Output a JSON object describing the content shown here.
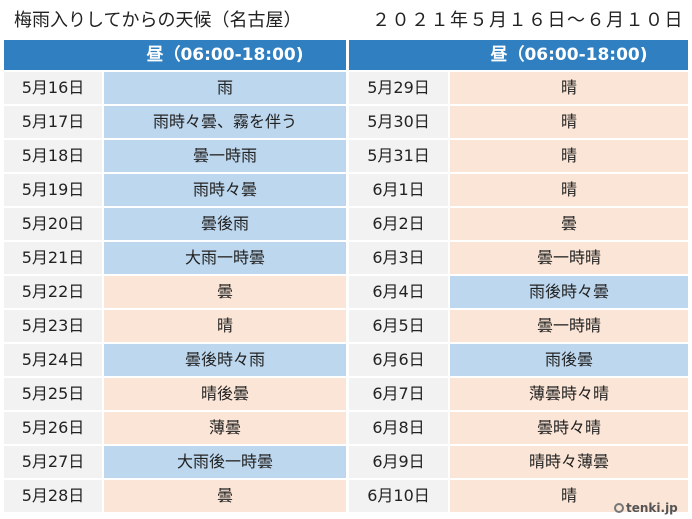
{
  "title": {
    "main": "梅雨入りしてからの天候（名古屋）",
    "range": "２０２１年５月１６日～６月１０日"
  },
  "header": {
    "left": "昼（06:00-18:00)",
    "right": "昼（06:00-18:00)"
  },
  "colors": {
    "rain": "#bdd7ee",
    "sun": "#fbe5d6",
    "header": "#2f7fc1"
  },
  "left_rows": [
    {
      "date": "5月16日",
      "weather": "雨",
      "type": "rain"
    },
    {
      "date": "5月17日",
      "weather": "雨時々曇、霧を伴う",
      "type": "rain"
    },
    {
      "date": "5月18日",
      "weather": "曇一時雨",
      "type": "rain"
    },
    {
      "date": "5月19日",
      "weather": "雨時々曇",
      "type": "rain"
    },
    {
      "date": "5月20日",
      "weather": "曇後雨",
      "type": "rain"
    },
    {
      "date": "5月21日",
      "weather": "大雨一時曇",
      "type": "rain"
    },
    {
      "date": "5月22日",
      "weather": "曇",
      "type": "sun"
    },
    {
      "date": "5月23日",
      "weather": "晴",
      "type": "sun"
    },
    {
      "date": "5月24日",
      "weather": "曇後時々雨",
      "type": "rain"
    },
    {
      "date": "5月25日",
      "weather": "晴後曇",
      "type": "sun"
    },
    {
      "date": "5月26日",
      "weather": "薄曇",
      "type": "sun"
    },
    {
      "date": "5月27日",
      "weather": "大雨後一時曇",
      "type": "rain"
    },
    {
      "date": "5月28日",
      "weather": "曇",
      "type": "sun"
    }
  ],
  "right_rows": [
    {
      "date": "5月29日",
      "weather": "晴",
      "type": "sun"
    },
    {
      "date": "5月30日",
      "weather": "晴",
      "type": "sun"
    },
    {
      "date": "5月31日",
      "weather": "晴",
      "type": "sun"
    },
    {
      "date": "6月1日",
      "weather": "晴",
      "type": "sun"
    },
    {
      "date": "6月2日",
      "weather": "曇",
      "type": "sun"
    },
    {
      "date": "6月3日",
      "weather": "曇一時晴",
      "type": "sun"
    },
    {
      "date": "6月4日",
      "weather": "雨後時々曇",
      "type": "rain"
    },
    {
      "date": "6月5日",
      "weather": "曇一時晴",
      "type": "sun"
    },
    {
      "date": "6月6日",
      "weather": "雨後曇",
      "type": "rain"
    },
    {
      "date": "6月7日",
      "weather": "薄曇時々晴",
      "type": "sun"
    },
    {
      "date": "6月8日",
      "weather": "曇時々晴",
      "type": "sun"
    },
    {
      "date": "6月9日",
      "weather": "晴時々薄曇",
      "type": "sun"
    },
    {
      "date": "6月10日",
      "weather": "晴",
      "type": "sun"
    }
  ],
  "logo": {
    "text": "tenki.jp",
    "icon": "tenki-logo-icon"
  }
}
